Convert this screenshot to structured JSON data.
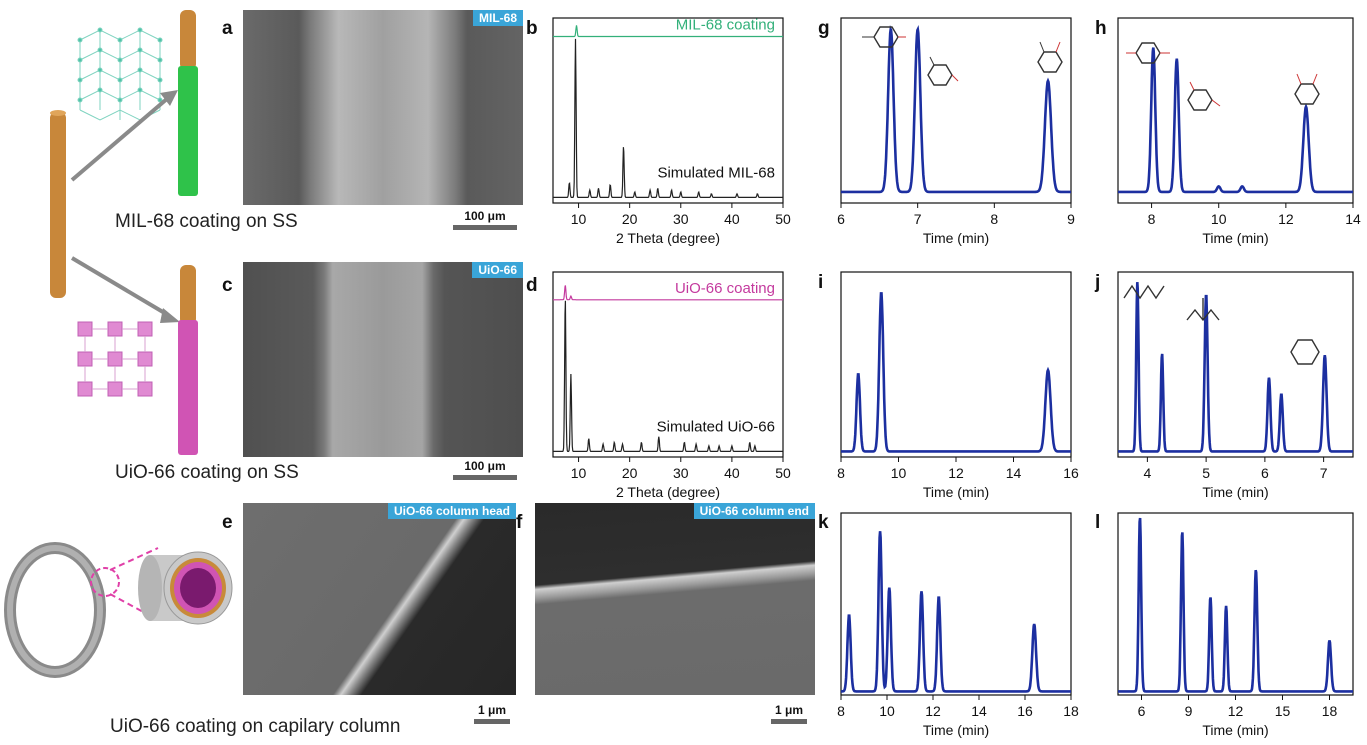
{
  "schematic": {
    "caption_mil": "MIL-68 coating on SS",
    "caption_uio": "UiO-66 coating on SS",
    "caption_cap": "UiO-66 coating on capilary column",
    "colors": {
      "rod": "#c8873a",
      "mil_coat": "#2fc24a",
      "uio_coat": "#d054b4",
      "arrow": "#8a8a8a"
    }
  },
  "panels": {
    "a": {
      "letter": "a",
      "tag": "MIL-68",
      "scale": "100 μm"
    },
    "b": {
      "letter": "b"
    },
    "c": {
      "letter": "c",
      "tag": "UiO-66",
      "scale": "100 μm"
    },
    "d": {
      "letter": "d"
    },
    "e": {
      "letter": "e",
      "tag": "UiO-66 column head",
      "scale": "1 μm"
    },
    "f": {
      "letter": "f",
      "tag": "UiO-66 column end",
      "scale": "1 μm"
    },
    "g": {
      "letter": "g"
    },
    "h": {
      "letter": "h"
    },
    "i": {
      "letter": "i"
    },
    "j": {
      "letter": "j"
    },
    "k": {
      "letter": "k"
    },
    "l": {
      "letter": "l"
    }
  },
  "chart_data": [
    {
      "id": "b",
      "type": "line",
      "xlabel": "2 Theta (degree)",
      "xlim": [
        5,
        50
      ],
      "xticks": [
        10,
        20,
        30,
        40,
        50
      ],
      "series": [
        {
          "name": "MIL-68 coating",
          "color": "#33b07a",
          "baseline": 0.9,
          "peaks": [
            [
              9.6,
              0.06
            ]
          ]
        },
        {
          "name": "Simulated MIL-68",
          "color": "#222222",
          "baseline": 0.03,
          "peaks": [
            [
              8.2,
              0.08
            ],
            [
              9.4,
              0.86
            ],
            [
              12.2,
              0.04
            ],
            [
              13.9,
              0.05
            ],
            [
              16.2,
              0.07
            ],
            [
              18.8,
              0.28
            ],
            [
              21.0,
              0.03
            ],
            [
              24.0,
              0.04
            ],
            [
              25.5,
              0.05
            ],
            [
              28.2,
              0.04
            ],
            [
              30.0,
              0.03
            ],
            [
              33.5,
              0.03
            ],
            [
              36.0,
              0.02
            ],
            [
              41.0,
              0.02
            ],
            [
              45.0,
              0.02
            ]
          ]
        }
      ]
    },
    {
      "id": "d",
      "type": "line",
      "xlabel": "2 Theta (degree)",
      "xlim": [
        5,
        50
      ],
      "xticks": [
        10,
        20,
        30,
        40,
        50
      ],
      "series": [
        {
          "name": "UiO-66 coating",
          "color": "#c43a9e",
          "baseline": 0.85,
          "peaks": [
            [
              7.4,
              0.08
            ],
            [
              8.5,
              0.02
            ]
          ]
        },
        {
          "name": "Simulated UiO-66",
          "color": "#222222",
          "baseline": 0.03,
          "peaks": [
            [
              7.4,
              0.84
            ],
            [
              8.5,
              0.42
            ],
            [
              12.0,
              0.07
            ],
            [
              14.8,
              0.04
            ],
            [
              17.0,
              0.05
            ],
            [
              18.6,
              0.04
            ],
            [
              22.3,
              0.05
            ],
            [
              25.7,
              0.08
            ],
            [
              30.7,
              0.05
            ],
            [
              33.0,
              0.04
            ],
            [
              35.5,
              0.03
            ],
            [
              37.5,
              0.03
            ],
            [
              40.0,
              0.03
            ],
            [
              43.5,
              0.05
            ],
            [
              44.5,
              0.03
            ]
          ]
        }
      ]
    },
    {
      "id": "g",
      "type": "line",
      "xlabel": "Time (min)",
      "xlim": [
        6,
        9
      ],
      "xticks": [
        6,
        7,
        8,
        9
      ],
      "series": [
        {
          "color": "#1c2fa0",
          "baseline": 0.06,
          "peaks": [
            [
              6.65,
              0.88,
              0.035
            ],
            [
              7.0,
              0.88,
              0.035
            ],
            [
              8.7,
              0.6,
              0.04
            ]
          ]
        }
      ]
    },
    {
      "id": "h",
      "type": "line",
      "xlabel": "Time (min)",
      "xlim": [
        7,
        14
      ],
      "xticks": [
        8,
        10,
        12,
        14
      ],
      "series": [
        {
          "color": "#1c2fa0",
          "baseline": 0.06,
          "peaks": [
            [
              8.05,
              0.78,
              0.06
            ],
            [
              8.75,
              0.72,
              0.06
            ],
            [
              10.0,
              0.03,
              0.05
            ],
            [
              10.7,
              0.03,
              0.05
            ],
            [
              12.6,
              0.46,
              0.08
            ]
          ]
        }
      ]
    },
    {
      "id": "i",
      "type": "line",
      "xlabel": "Time (min)",
      "xlim": [
        8,
        16
      ],
      "xticks": [
        8,
        10,
        12,
        14,
        16
      ],
      "series": [
        {
          "color": "#1c2fa0",
          "baseline": 0.03,
          "peaks": [
            [
              8.6,
              0.42,
              0.06
            ],
            [
              9.4,
              0.86,
              0.07
            ],
            [
              15.2,
              0.44,
              0.09
            ]
          ]
        }
      ]
    },
    {
      "id": "j",
      "type": "line",
      "xlabel": "Time (min)",
      "xlim": [
        3.5,
        7.5
      ],
      "xticks": [
        4,
        5,
        6,
        7
      ],
      "series": [
        {
          "color": "#1c2fa0",
          "baseline": 0.03,
          "peaks": [
            [
              3.83,
              0.92,
              0.02
            ],
            [
              4.25,
              0.53,
              0.02
            ],
            [
              5.0,
              0.85,
              0.025
            ],
            [
              6.07,
              0.4,
              0.025
            ],
            [
              6.28,
              0.31,
              0.025
            ],
            [
              7.02,
              0.52,
              0.03
            ]
          ]
        }
      ]
    },
    {
      "id": "k",
      "type": "line",
      "xlabel": "Time (min)",
      "xlim": [
        8,
        18
      ],
      "xticks": [
        8,
        10,
        12,
        14,
        16,
        18
      ],
      "series": [
        {
          "color": "#1c2fa0",
          "baseline": 0.02,
          "peaks": [
            [
              8.35,
              0.42,
              0.07
            ],
            [
              9.7,
              0.88,
              0.07
            ],
            [
              10.1,
              0.57,
              0.07
            ],
            [
              11.5,
              0.55,
              0.07
            ],
            [
              12.25,
              0.52,
              0.07
            ],
            [
              16.4,
              0.37,
              0.08
            ]
          ]
        }
      ]
    },
    {
      "id": "l",
      "type": "line",
      "xlabel": "Time (min)",
      "xlim": [
        4.5,
        19.5
      ],
      "xticks": [
        6,
        9,
        12,
        15,
        18
      ],
      "series": [
        {
          "color": "#1c2fa0",
          "baseline": 0.02,
          "peaks": [
            [
              5.9,
              0.96,
              0.08
            ],
            [
              8.6,
              0.88,
              0.08
            ],
            [
              10.4,
              0.52,
              0.08
            ],
            [
              11.4,
              0.47,
              0.08
            ],
            [
              13.3,
              0.67,
              0.09
            ],
            [
              18.0,
              0.28,
              0.1
            ]
          ]
        }
      ]
    }
  ]
}
